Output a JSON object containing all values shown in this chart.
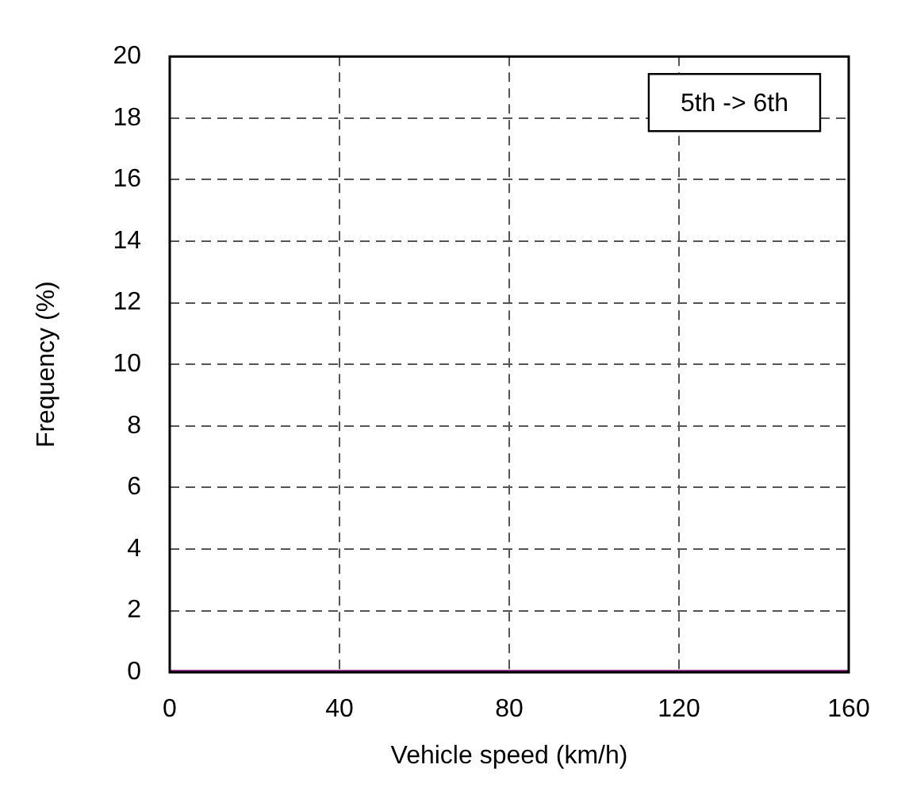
{
  "chart_data": {
    "type": "line",
    "xlabel": "Vehicle speed (km/h)",
    "ylabel": "Frequency (%)",
    "annotations": [
      "5th -> 6th"
    ],
    "x": [
      0,
      160
    ],
    "series": [
      {
        "color": "#8b1a7f",
        "values": [
          0,
          0
        ]
      }
    ],
    "xlim": [
      0,
      160
    ],
    "xticks": [
      0,
      40,
      80,
      120,
      160
    ],
    "ylim": [
      0,
      20
    ],
    "yticks": [
      0,
      2,
      4,
      6,
      8,
      10,
      12,
      14,
      16,
      18,
      20
    ],
    "grid": true,
    "legend": false,
    "marker": "none",
    "line_style": "solid"
  }
}
